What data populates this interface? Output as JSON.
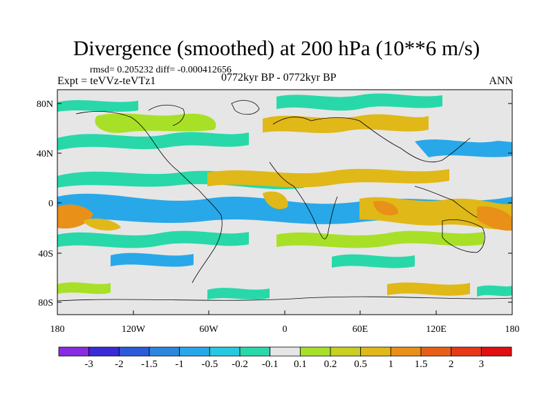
{
  "title": "Divergence (smoothed) at 200 hPa (10**6 m/s)",
  "stats_line": "rmsd= 0.205232 diff= -0.000412656",
  "left_label": "Expt = teVVz-teVTz1",
  "center_label": "0772kyr BP - 0772kyr BP",
  "right_label": "ANN",
  "lat_ticks": [
    "80N",
    "40N",
    "0",
    "40S",
    "80S"
  ],
  "lon_ticks": [
    "180",
    "120W",
    "60W",
    "0",
    "60E",
    "120E",
    "180"
  ],
  "colorbar": {
    "labels": [
      "-3",
      "-2",
      "-1.5",
      "-1",
      "-0.5",
      "-0.2",
      "-0.1",
      "0.1",
      "0.2",
      "0.5",
      "1",
      "1.5",
      "2",
      "3"
    ],
    "colors": [
      "#8a2be2",
      "#3a2bd8",
      "#2b5bd8",
      "#2b86e0",
      "#28a8e8",
      "#28c8e0",
      "#28d8a8",
      "#e6e6e6",
      "#a8e028",
      "#c8d020",
      "#e0b818",
      "#e89018",
      "#e86018",
      "#e83818",
      "#e01010"
    ]
  },
  "colors": {
    "land_bg": "#e6e6e6",
    "coast": "#000000",
    "neg_mid": "#28a8e8",
    "neg_low": "#28d8a8",
    "pos_low": "#a8e028",
    "pos_mid": "#e0b818",
    "pos_high": "#e89018"
  }
}
